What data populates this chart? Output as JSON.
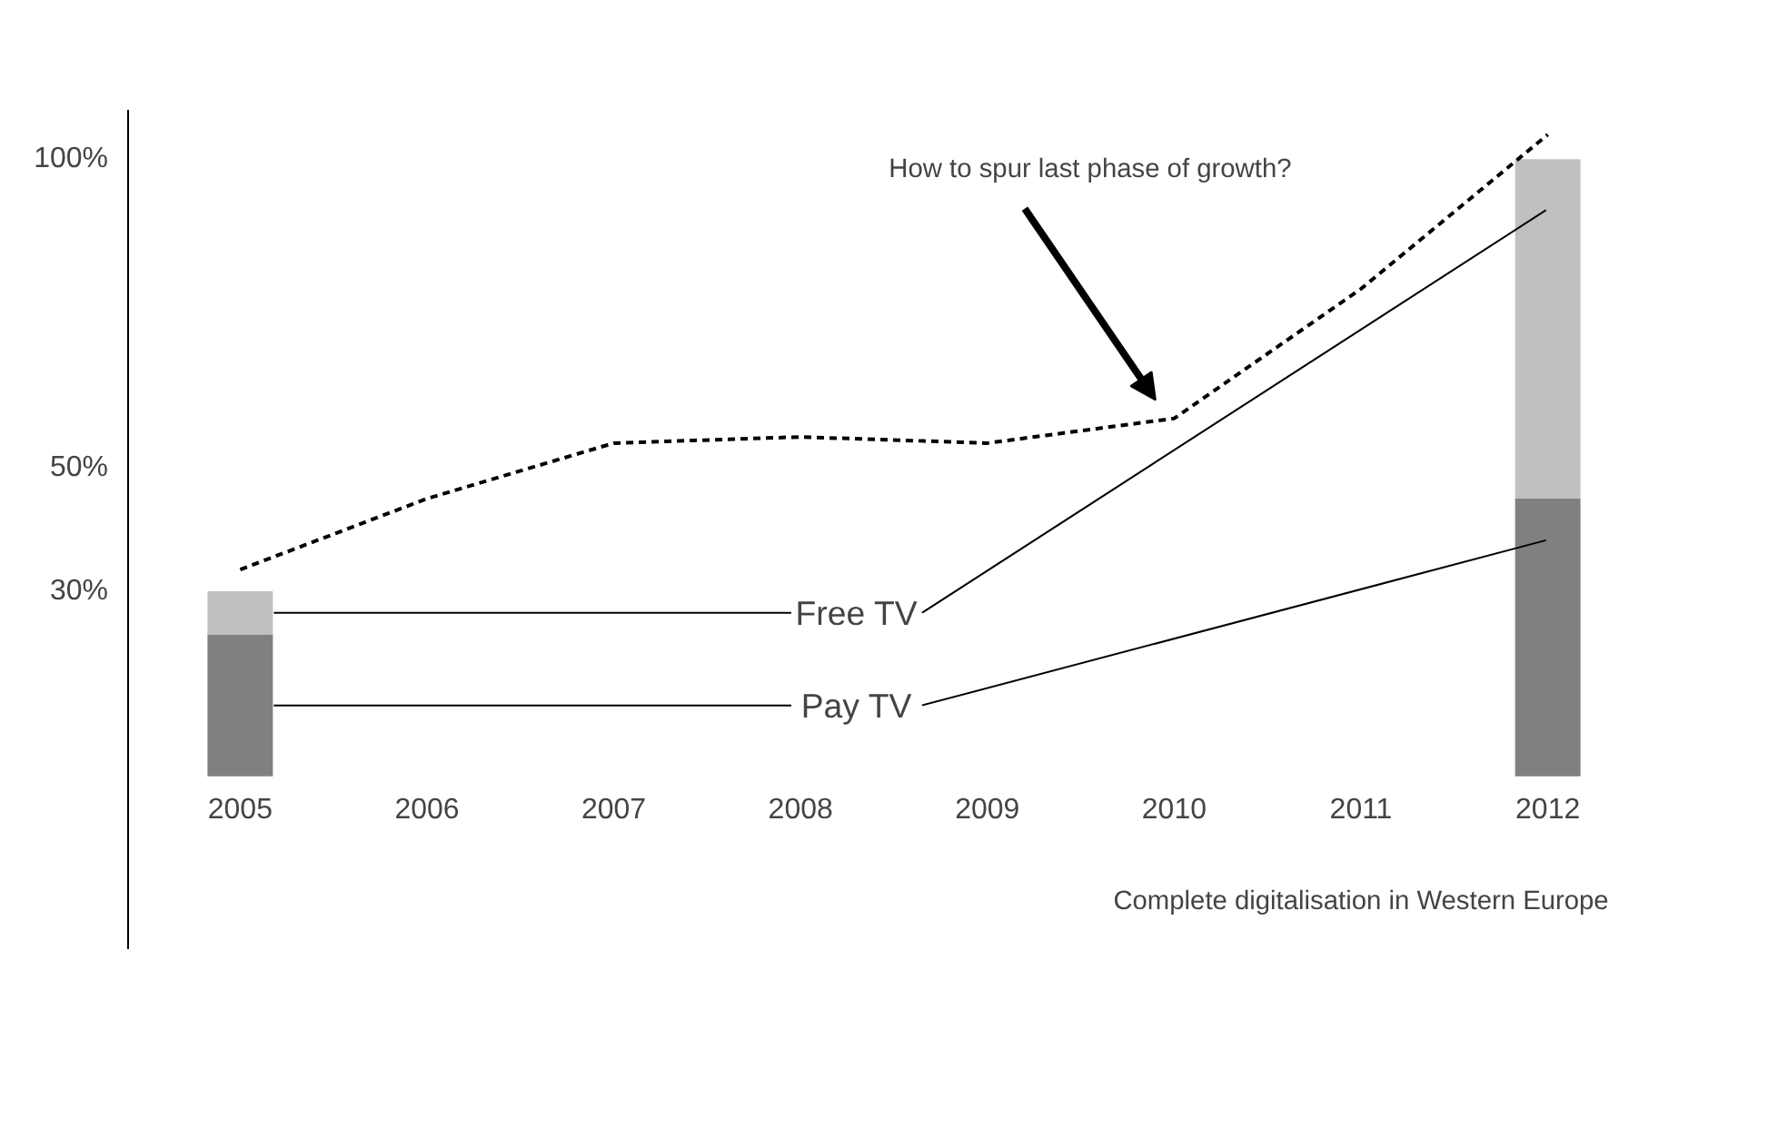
{
  "chart_data": {
    "type": "bar",
    "stacked": true,
    "categories": [
      "2005",
      "2006",
      "2007",
      "2008",
      "2009",
      "2010",
      "2011",
      "2012"
    ],
    "series": [
      {
        "name": "Pay TV",
        "color": "#808080",
        "values": [
          23,
          null,
          null,
          null,
          null,
          null,
          null,
          45
        ]
      },
      {
        "name": "Free TV",
        "color": "#c0c0c0",
        "values": [
          7,
          null,
          null,
          null,
          null,
          null,
          null,
          55
        ]
      },
      {
        "type": "line",
        "color": "#000000",
        "line_style": "dashed",
        "marker": "none",
        "values": [
          33.5,
          45,
          54,
          55,
          54,
          58,
          79,
          104
        ]
      }
    ],
    "ylim": [
      -28,
      108
    ],
    "yticks": [
      {
        "value": 30,
        "label": "30%"
      },
      {
        "value": 50,
        "label": "50%"
      },
      {
        "value": 100,
        "label": "100%"
      }
    ],
    "grid": false,
    "annotations": [
      "How to spur last phase of growth?",
      "Complete digitalisation in Western Europe"
    ]
  }
}
